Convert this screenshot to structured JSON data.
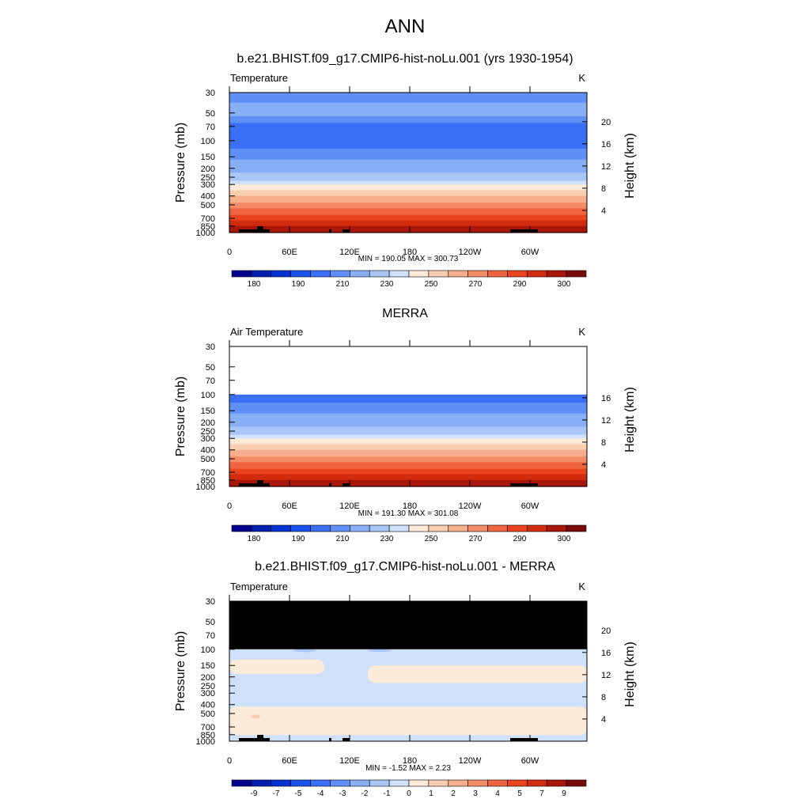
{
  "figure_title": "ANN",
  "chart_data": [
    {
      "type": "heatmap",
      "title": "b.e21.BHIST.f09_g17.CMIP6-hist-noLu.001 (yrs 1930-1954)",
      "variable_label": "Temperature",
      "units": "K",
      "ylabel": "Pressure (mb)",
      "ylabel_right": "Height (km)",
      "x_ticks": [
        "0",
        "60E",
        "120E",
        "180",
        "120W",
        "60W"
      ],
      "y_ticks": [
        "30",
        "50",
        "70",
        "100",
        "150",
        "200",
        "250",
        "300",
        "400",
        "500",
        "700",
        "850",
        "1000"
      ],
      "height_ticks": [
        "20",
        "16",
        "12",
        "8",
        "4"
      ],
      "min_max_text": "MIN = 190.05  MAX = 300.73",
      "ylim": [
        1000,
        30
      ],
      "levels_mb": [
        30,
        50,
        70,
        100,
        150,
        200,
        250,
        300,
        400,
        500,
        700,
        850,
        1000
      ],
      "level_values": [
        212,
        217,
        203,
        203,
        212,
        220,
        226,
        236,
        252,
        263,
        280,
        289,
        297
      ],
      "colorbar_labels": [
        "180",
        "190",
        "210",
        "230",
        "250",
        "270",
        "290",
        "300"
      ]
    },
    {
      "type": "heatmap",
      "title": "MERRA",
      "variable_label": "Air Temperature",
      "units": "K",
      "ylabel": "Pressure (mb)",
      "ylabel_right": "Height (km)",
      "x_ticks": [
        "0",
        "60E",
        "120E",
        "180",
        "120W",
        "60W"
      ],
      "y_ticks": [
        "30",
        "50",
        "70",
        "100",
        "150",
        "200",
        "250",
        "300",
        "400",
        "500",
        "700",
        "850",
        "1000"
      ],
      "height_ticks": [
        "16",
        "12",
        "8",
        "4"
      ],
      "min_max_text": "MIN = 191.30  MAX = 301.08",
      "ylim": [
        1000,
        30
      ],
      "levels_mb": [
        100,
        150,
        200,
        250,
        300,
        400,
        500,
        700,
        850,
        1000
      ],
      "level_values": [
        203,
        212,
        220,
        226,
        236,
        252,
        263,
        280,
        289,
        297
      ],
      "colorbar_labels": [
        "180",
        "190",
        "210",
        "230",
        "250",
        "270",
        "290",
        "300"
      ]
    },
    {
      "type": "heatmap",
      "title": "b.e21.BHIST.f09_g17.CMIP6-hist-noLu.001 - MERRA",
      "variable_label": "Temperature",
      "units": "K",
      "ylabel": "Pressure (mb)",
      "ylabel_right": "Height (km)",
      "x_ticks": [
        "0",
        "60E",
        "120E",
        "180",
        "120W",
        "60W"
      ],
      "y_ticks": [
        "30",
        "50",
        "70",
        "100",
        "150",
        "200",
        "250",
        "300",
        "400",
        "500",
        "700",
        "850",
        "1000"
      ],
      "height_ticks": [
        "20",
        "16",
        "12",
        "8",
        "4"
      ],
      "min_max_text": "MIN =  -1.52  MAX =   2.23",
      "ylim": [
        1000,
        30
      ],
      "missing_above_mb": 100,
      "colorbar_labels": [
        "-9",
        "-7",
        "-5",
        "-4",
        "-3",
        "-2",
        "-1",
        "0",
        "1",
        "2",
        "3",
        "4",
        "5",
        "7",
        "9"
      ]
    }
  ],
  "colors": {
    "abs_palette": [
      "#00008f",
      "#0020b0",
      "#0034d4",
      "#1a52ee",
      "#3b6ff5",
      "#6090f5",
      "#88aef5",
      "#aac6f7",
      "#cfe1fa",
      "#fdebd9",
      "#f9cdb0",
      "#f6ae8c",
      "#f38c66",
      "#ef6540",
      "#e9431f",
      "#d22a0c",
      "#a8170a",
      "#7a0a0a"
    ],
    "diff_palette": [
      "#00008f",
      "#0020b0",
      "#0034d4",
      "#1a52ee",
      "#3b6ff5",
      "#6090f5",
      "#88aef5",
      "#aac6f7",
      "#cfe1fa",
      "#fdebd9",
      "#f9cdb0",
      "#f6ae8c",
      "#f38c66",
      "#ef6540",
      "#e9431f",
      "#d22a0c",
      "#a8170a",
      "#7a0a0a"
    ],
    "topography": "#000000"
  }
}
